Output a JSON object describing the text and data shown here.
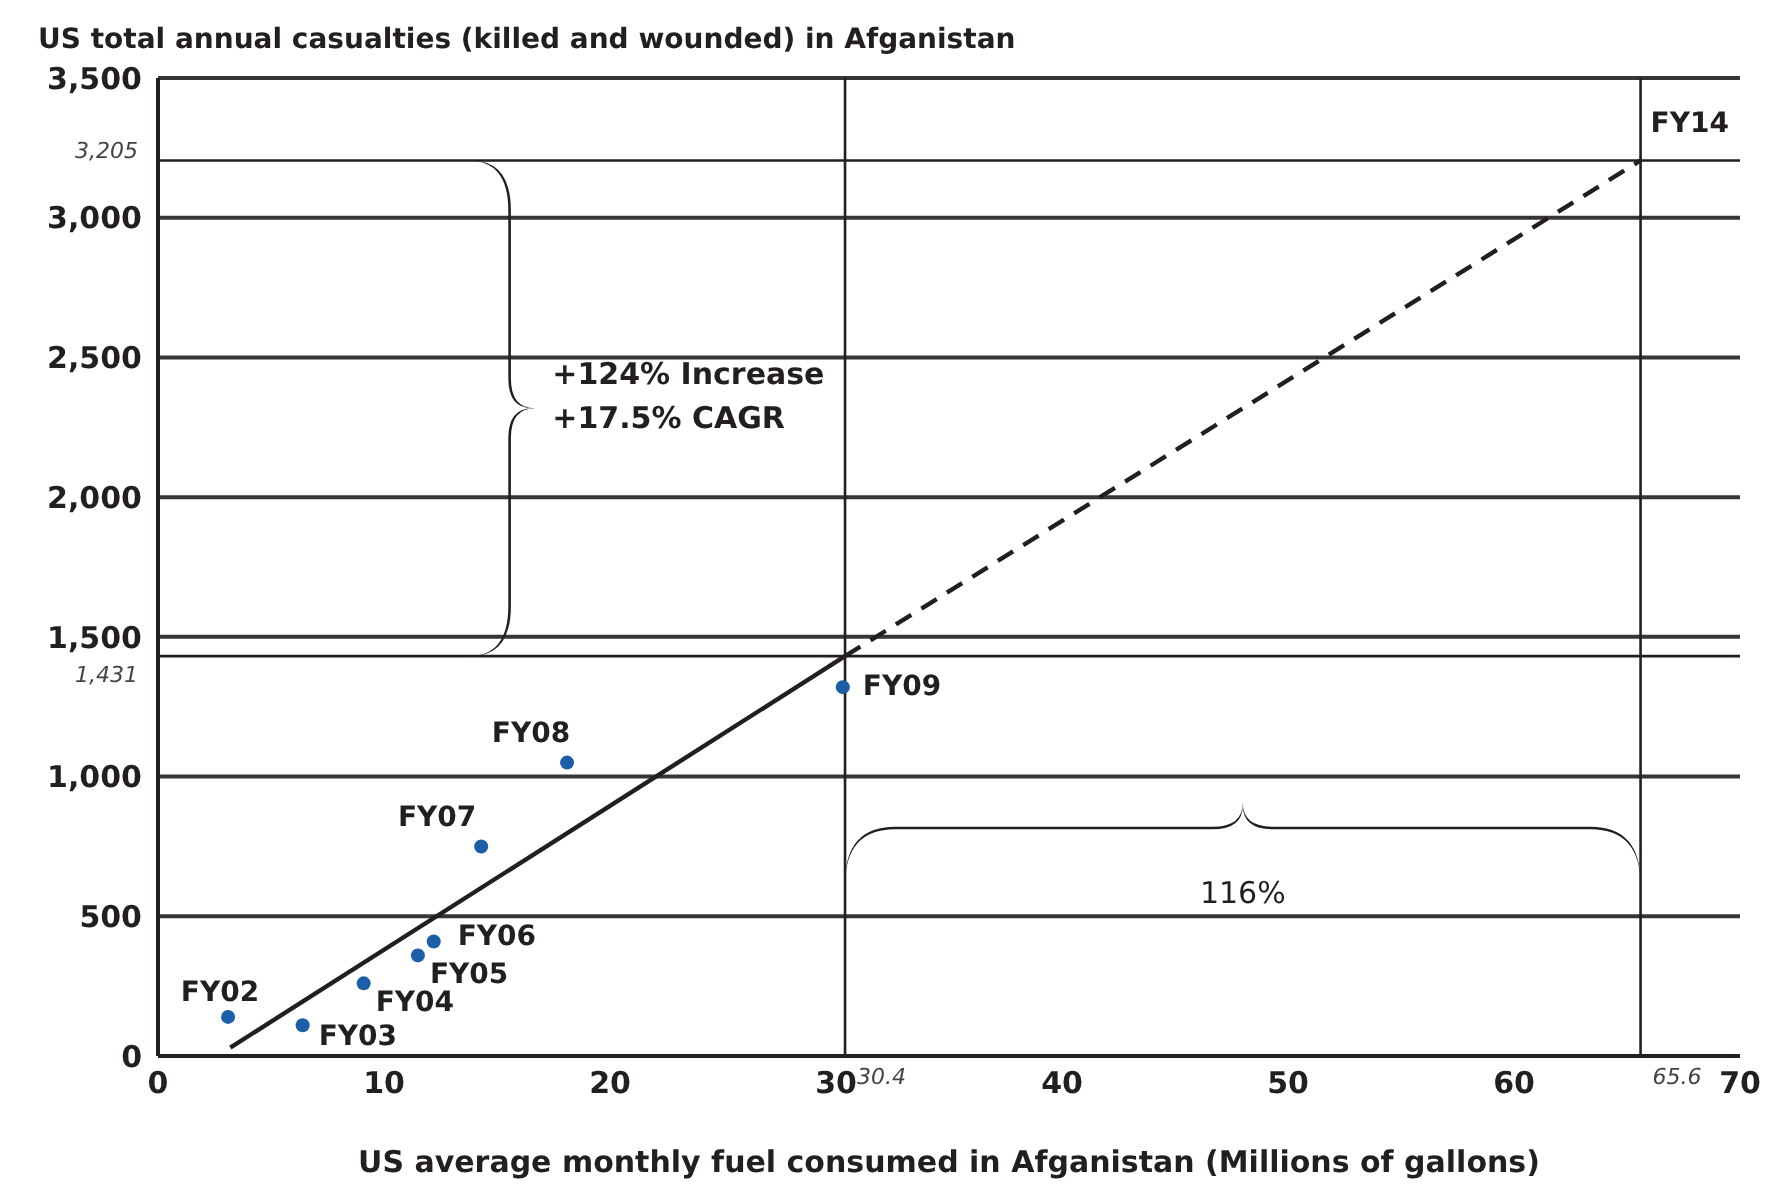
{
  "chart_data": {
    "type": "scatter",
    "title": "US total annual casualties (killed and wounded) in Afganistan",
    "xlabel": "US average monthly fuel consumed in Afganistan (Millions of gallons)",
    "xlim": [
      0,
      70
    ],
    "xticks": [
      0,
      10,
      20,
      30,
      40,
      50,
      60,
      70
    ],
    "ylim": [
      0,
      3500
    ],
    "yticks": [
      0,
      500,
      {
        "value": 1000,
        "label": "1,000"
      },
      {
        "value": 1500,
        "label": "1,500"
      },
      {
        "value": 2000,
        "label": "2,000"
      },
      {
        "value": 2500,
        "label": "2,500"
      },
      {
        "value": 3000,
        "label": "3,000"
      },
      {
        "value": 3500,
        "label": "3,500"
      }
    ],
    "grid": "y",
    "marker": "circle",
    "series": [
      {
        "color": "#1a5fa8",
        "x": [
          3.1,
          6.4,
          9.1,
          11.5,
          12.2,
          14.3,
          18.1,
          30.3
        ],
        "values": [
          140,
          110,
          260,
          360,
          410,
          750,
          1050,
          1320
        ],
        "value_labels": [
          "FY02",
          "FY03",
          "FY04",
          "FY05",
          "FY06",
          "FY07",
          "FY08",
          "FY09"
        ]
      },
      {
        "type": "line",
        "color": "#231f20",
        "line_style": "solid",
        "marker": "none",
        "x": [
          3.2,
          30.4
        ],
        "values": [
          30,
          1431
        ]
      },
      {
        "type": "line",
        "color": "#231f20",
        "line_style": "dashed",
        "marker": "none",
        "x": [
          30.4,
          65.6
        ],
        "values": [
          1431,
          3205
        ]
      }
    ],
    "ref_lines": [
      {
        "axis": "y",
        "value": 3205,
        "label": "3,205",
        "color": "#231f20"
      },
      {
        "axis": "y",
        "value": 1431,
        "label": "1,431",
        "color": "#231f20"
      },
      {
        "axis": "x",
        "value": 30.4,
        "label": "30.4",
        "color": "#231f20"
      },
      {
        "axis": "x",
        "value": 65.6,
        "label": "65.6",
        "color": "#231f20"
      }
    ],
    "annotations": [
      {
        "text": "FY14",
        "x": 65.6,
        "y": 3205
      },
      "+124% Increase\n+17.5% CAGR",
      "116%"
    ]
  }
}
